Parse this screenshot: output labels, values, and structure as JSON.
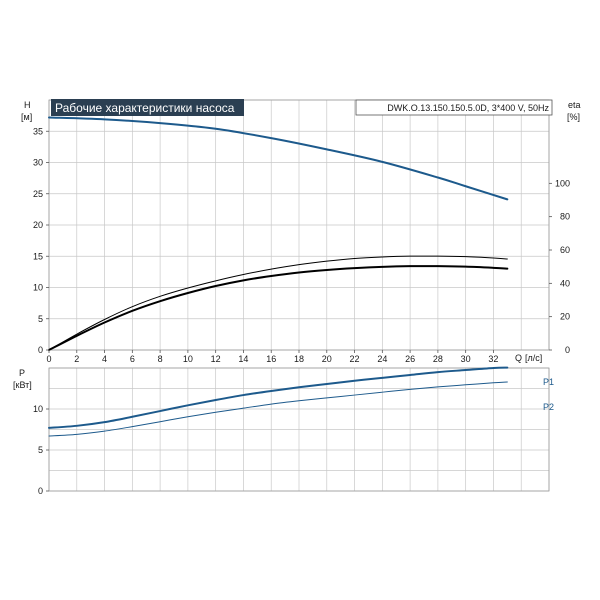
{
  "header": {
    "title": "Рабочие характеристики насоса",
    "model": "DWK.O.13.150.150.5.0D, 3*400 V, 50Hz"
  },
  "colors": {
    "title_bg": "#2b3f52",
    "head_curve": "#1d5a8c",
    "eta_curve": "#000000",
    "power_curve": "#1d5a8c",
    "grid": "#c8c8c8",
    "frame": "#9a9a9a"
  },
  "chart_data": [
    {
      "type": "line",
      "name": "head-efficiency",
      "ylabel_left": "H",
      "ylabel_left_unit": "[м]",
      "ylabel_right": "eta",
      "ylabel_right_unit": "[%]",
      "xlabel": "Q",
      "xlabel_unit": "[л/с]",
      "xlim": [
        0,
        36
      ],
      "x_ticks": [
        0,
        2,
        4,
        6,
        8,
        10,
        12,
        14,
        16,
        18,
        20,
        22,
        24,
        26,
        28,
        30,
        32
      ],
      "ylim_left": [
        0,
        40
      ],
      "y_ticks_left": [
        0,
        5,
        10,
        15,
        20,
        25,
        30,
        35
      ],
      "ylim_right": [
        0,
        150
      ],
      "y_ticks_right": [
        0,
        20,
        40,
        60,
        80,
        100
      ],
      "grid": true,
      "series": [
        {
          "key": "H",
          "axis": "left",
          "color": "#1d5a8c",
          "width": 2,
          "x": [
            0,
            4,
            8,
            12,
            16,
            20,
            24,
            28,
            30,
            33
          ],
          "y": [
            37.2,
            36.9,
            36.3,
            35.4,
            33.9,
            32.1,
            30.1,
            27.6,
            26.2,
            24.1
          ]
        },
        {
          "key": "eta-upper",
          "axis": "right",
          "color": "#000000",
          "width": 1,
          "x": [
            0,
            2,
            4,
            6,
            8,
            10,
            12,
            14,
            16,
            18,
            20,
            22,
            24,
            26,
            28,
            30,
            32,
            33
          ],
          "y": [
            0,
            9.5,
            18.3,
            26,
            32.2,
            37.2,
            41.5,
            45.3,
            48.5,
            51.2,
            53.3,
            54.9,
            55.8,
            56.3,
            56.3,
            56,
            55.2,
            54.6
          ]
        },
        {
          "key": "eta-lower",
          "axis": "right",
          "color": "#000000",
          "width": 2,
          "x": [
            0,
            2,
            4,
            6,
            8,
            10,
            12,
            14,
            16,
            18,
            20,
            22,
            24,
            26,
            28,
            30,
            32,
            33
          ],
          "y": [
            0,
            8.5,
            16.5,
            23.5,
            29.3,
            34.2,
            38.4,
            41.8,
            44.4,
            46.5,
            48,
            49.1,
            49.9,
            50.3,
            50.3,
            50,
            49.3,
            48.8
          ]
        }
      ]
    },
    {
      "type": "line",
      "name": "power",
      "ylabel": "P",
      "ylabel_unit": "[кВт]",
      "xlim": [
        0,
        36
      ],
      "ylim": [
        0,
        15
      ],
      "y_ticks": [
        0,
        5,
        10
      ],
      "grid": true,
      "series": [
        {
          "name": "P1",
          "color": "#1d5a8c",
          "width": 2,
          "x": [
            0,
            2,
            4,
            6,
            8,
            10,
            12,
            14,
            16,
            18,
            20,
            22,
            24,
            26,
            28,
            30,
            32,
            33
          ],
          "y": [
            7.7,
            7.95,
            8.4,
            9.05,
            9.75,
            10.45,
            11.1,
            11.7,
            12.2,
            12.65,
            13.05,
            13.45,
            13.8,
            14.15,
            14.5,
            14.75,
            15.0,
            15.05
          ]
        },
        {
          "name": "P2",
          "color": "#1d5a8c",
          "width": 1,
          "x": [
            0,
            2,
            4,
            6,
            8,
            10,
            12,
            14,
            16,
            18,
            20,
            22,
            24,
            26,
            28,
            30,
            32,
            33
          ],
          "y": [
            6.7,
            6.9,
            7.3,
            7.85,
            8.45,
            9.05,
            9.6,
            10.1,
            10.6,
            11.0,
            11.35,
            11.7,
            12.05,
            12.4,
            12.7,
            12.95,
            13.2,
            13.3
          ]
        }
      ]
    }
  ]
}
